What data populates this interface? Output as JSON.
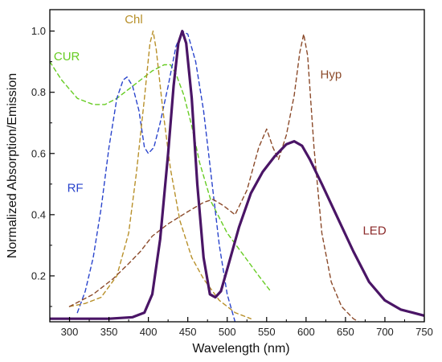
{
  "chart_data": {
    "type": "line",
    "xlabel": "Wavelength (nm)",
    "ylabel": "Normalized Absorption/Emission",
    "xlim": [
      275,
      750
    ],
    "ylim": [
      0.05,
      1.07
    ],
    "x_ticks": [
      300,
      350,
      400,
      450,
      500,
      550,
      600,
      650,
      700,
      750
    ],
    "y_ticks": [
      0.2,
      0.4,
      0.6,
      0.8,
      1.0
    ],
    "x_tick_labels": [
      "300",
      "350",
      "400",
      "450",
      "500",
      "550",
      "600",
      "650",
      "700",
      "750"
    ],
    "y_tick_labels": [
      "0.2",
      "0.4",
      "0.6",
      "0.8",
      "1.0"
    ],
    "grid": false,
    "legend": "none",
    "series": [
      {
        "name": "CUR",
        "color": "#66cc22",
        "style": "dashed",
        "points": [
          [
            275,
            0.9
          ],
          [
            290,
            0.84
          ],
          [
            310,
            0.78
          ],
          [
            330,
            0.76
          ],
          [
            345,
            0.76
          ],
          [
            360,
            0.78
          ],
          [
            375,
            0.81
          ],
          [
            390,
            0.84
          ],
          [
            405,
            0.87
          ],
          [
            420,
            0.89
          ],
          [
            428,
            0.89
          ],
          [
            435,
            0.86
          ],
          [
            445,
            0.79
          ],
          [
            455,
            0.69
          ],
          [
            465,
            0.57
          ],
          [
            480,
            0.44
          ],
          [
            500,
            0.34
          ],
          [
            520,
            0.27
          ],
          [
            540,
            0.2
          ],
          [
            555,
            0.15
          ]
        ]
      },
      {
        "name": "RF",
        "color": "#2a44cc",
        "style": "dashed",
        "points": [
          [
            310,
            0.08
          ],
          [
            320,
            0.15
          ],
          [
            330,
            0.26
          ],
          [
            340,
            0.42
          ],
          [
            350,
            0.62
          ],
          [
            360,
            0.78
          ],
          [
            368,
            0.84
          ],
          [
            373,
            0.85
          ],
          [
            380,
            0.82
          ],
          [
            388,
            0.74
          ],
          [
            395,
            0.62
          ],
          [
            400,
            0.6
          ],
          [
            407,
            0.62
          ],
          [
            415,
            0.7
          ],
          [
            425,
            0.82
          ],
          [
            435,
            0.95
          ],
          [
            443,
            1.0
          ],
          [
            450,
            0.99
          ],
          [
            460,
            0.9
          ],
          [
            470,
            0.74
          ],
          [
            480,
            0.52
          ],
          [
            490,
            0.3
          ],
          [
            500,
            0.14
          ],
          [
            510,
            0.05
          ]
        ]
      },
      {
        "name": "Chl",
        "color": "#b8902a",
        "style": "dashed",
        "points": [
          [
            300,
            0.1
          ],
          [
            320,
            0.11
          ],
          [
            340,
            0.13
          ],
          [
            360,
            0.2
          ],
          [
            375,
            0.34
          ],
          [
            385,
            0.54
          ],
          [
            395,
            0.78
          ],
          [
            402,
            0.96
          ],
          [
            406,
            1.0
          ],
          [
            410,
            0.94
          ],
          [
            418,
            0.75
          ],
          [
            428,
            0.55
          ],
          [
            440,
            0.38
          ],
          [
            455,
            0.26
          ],
          [
            470,
            0.19
          ],
          [
            490,
            0.12
          ],
          [
            510,
            0.08
          ],
          [
            530,
            0.06
          ]
        ]
      },
      {
        "name": "Hyp",
        "color": "#8b4a2a",
        "style": "dashed",
        "points": [
          [
            300,
            0.1
          ],
          [
            330,
            0.14
          ],
          [
            355,
            0.19
          ],
          [
            375,
            0.24
          ],
          [
            390,
            0.28
          ],
          [
            405,
            0.33
          ],
          [
            425,
            0.37
          ],
          [
            450,
            0.41
          ],
          [
            470,
            0.44
          ],
          [
            482,
            0.45
          ],
          [
            495,
            0.43
          ],
          [
            510,
            0.4
          ],
          [
            525,
            0.48
          ],
          [
            540,
            0.62
          ],
          [
            550,
            0.68
          ],
          [
            558,
            0.62
          ],
          [
            565,
            0.58
          ],
          [
            575,
            0.66
          ],
          [
            585,
            0.79
          ],
          [
            592,
            0.93
          ],
          [
            597,
            0.99
          ],
          [
            602,
            0.92
          ],
          [
            610,
            0.62
          ],
          [
            620,
            0.34
          ],
          [
            632,
            0.18
          ],
          [
            645,
            0.1
          ],
          [
            660,
            0.06
          ],
          [
            680,
            0.03
          ]
        ]
      },
      {
        "name": "LED",
        "color": "#4a1566",
        "style": "solid",
        "points": [
          [
            275,
            0.06
          ],
          [
            350,
            0.06
          ],
          [
            380,
            0.065
          ],
          [
            395,
            0.08
          ],
          [
            405,
            0.14
          ],
          [
            415,
            0.32
          ],
          [
            425,
            0.6
          ],
          [
            432,
            0.82
          ],
          [
            438,
            0.96
          ],
          [
            443,
            1.0
          ],
          [
            448,
            0.96
          ],
          [
            455,
            0.78
          ],
          [
            462,
            0.5
          ],
          [
            470,
            0.26
          ],
          [
            478,
            0.14
          ],
          [
            485,
            0.13
          ],
          [
            492,
            0.15
          ],
          [
            502,
            0.24
          ],
          [
            515,
            0.36
          ],
          [
            530,
            0.47
          ],
          [
            545,
            0.54
          ],
          [
            560,
            0.59
          ],
          [
            575,
            0.63
          ],
          [
            585,
            0.64
          ],
          [
            595,
            0.625
          ],
          [
            605,
            0.58
          ],
          [
            620,
            0.5
          ],
          [
            640,
            0.39
          ],
          [
            660,
            0.28
          ],
          [
            680,
            0.18
          ],
          [
            700,
            0.12
          ],
          [
            720,
            0.09
          ],
          [
            735,
            0.08
          ],
          [
            750,
            0.07
          ]
        ]
      }
    ],
    "annotations": [
      {
        "text": "CUR",
        "x": 280,
        "y": 0.905,
        "color": "#66cc22"
      },
      {
        "text": "RF",
        "x": 297,
        "y": 0.475,
        "color": "#2a44cc"
      },
      {
        "text": "Chl",
        "x": 370,
        "y": 1.025,
        "color": "#b8902a"
      },
      {
        "text": "Hyp",
        "x": 618,
        "y": 0.845,
        "color": "#8b4a2a"
      },
      {
        "text": "LED",
        "x": 672,
        "y": 0.335,
        "color": "#8b2a2a"
      }
    ]
  }
}
